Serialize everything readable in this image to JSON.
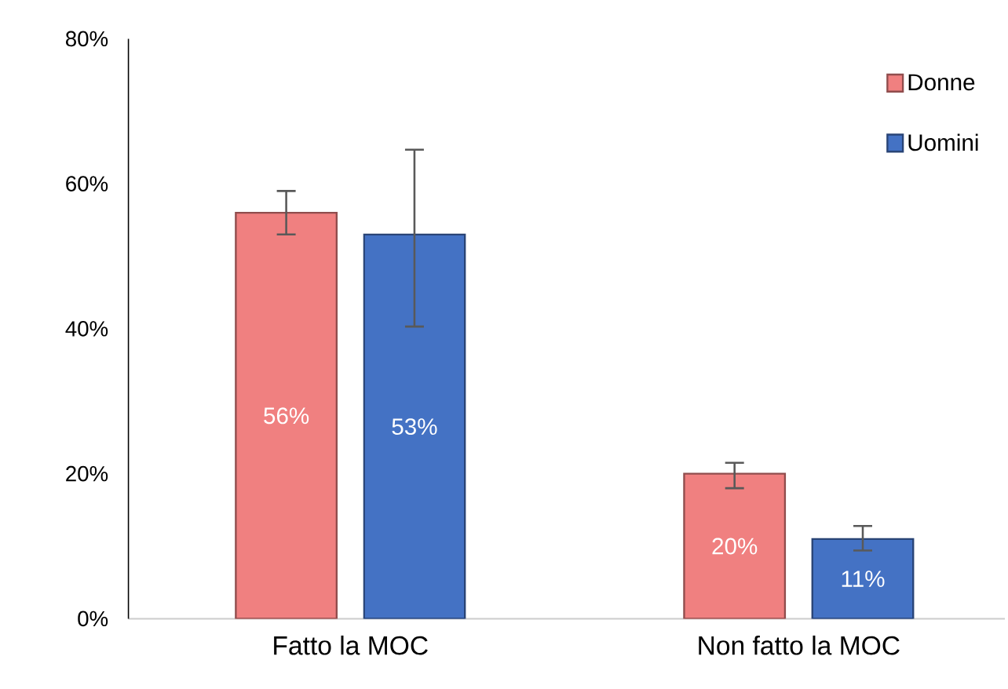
{
  "chart_data": {
    "type": "bar",
    "categories": [
      "Fatto la MOC",
      "Non fatto la MOC"
    ],
    "series": [
      {
        "name": "Donne",
        "color": "#f08080",
        "values": [
          56,
          20
        ],
        "errors": [
          [
            53,
            59
          ],
          [
            18,
            21.5
          ]
        ],
        "value_labels": [
          "56%",
          "20%"
        ]
      },
      {
        "name": "Uomini",
        "color": "#4472c4",
        "values": [
          53,
          11
        ],
        "errors": [
          [
            40.3,
            64.7
          ],
          [
            9.4,
            12.8
          ]
        ],
        "value_labels": [
          "53%",
          "11%"
        ]
      }
    ],
    "ylim": [
      0,
      80
    ],
    "yticks": [
      {
        "value": 0,
        "label": "0%"
      },
      {
        "value": 20,
        "label": "20%"
      },
      {
        "value": 40,
        "label": "40%"
      },
      {
        "value": 60,
        "label": "60%"
      },
      {
        "value": 80,
        "label": "80%"
      }
    ],
    "grid": false,
    "legend": "top right"
  }
}
